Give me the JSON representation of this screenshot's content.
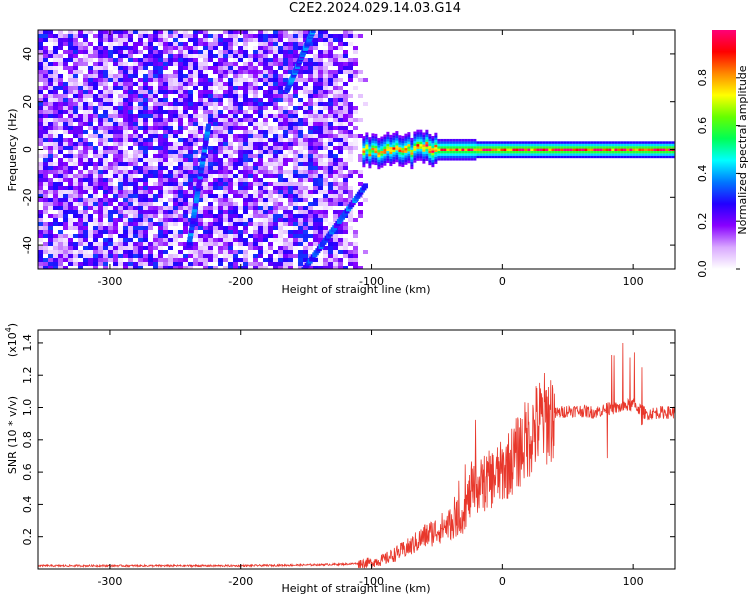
{
  "title": "C2E2.2024.029.14.03.G14",
  "chart_data": [
    {
      "type": "heatmap",
      "xlabel": "Height of straight line (km)",
      "ylabel": "Frequency (Hz)",
      "xlim": [
        -355,
        132
      ],
      "ylim": [
        -50,
        50
      ],
      "xticks": [
        -300,
        -200,
        -100,
        0,
        100
      ],
      "yticks": [
        -40,
        -20,
        0,
        20,
        40
      ],
      "colorbar": {
        "label": "Normalized spectral amplitude",
        "range": [
          0,
          1
        ],
        "ticks": [
          0.0,
          0.2,
          0.4,
          0.6,
          0.8
        ],
        "tick_labels": [
          "0.0",
          "0.2",
          "0.4",
          "0.6",
          "0.8"
        ],
        "colors": [
          "#ffffff",
          "#d9a8ff",
          "#8800ff",
          "#2200ff",
          "#0077ff",
          "#00ffff",
          "#00ff55",
          "#66ff00",
          "#ffff00",
          "#ff8800",
          "#ff0000",
          "#ff0077"
        ]
      },
      "features": {
        "noise_region_x": [
          -355,
          -105
        ],
        "carrier_frequency": 0,
        "carrier_start_x": -107,
        "diagonal_streaks": [
          {
            "x_start": -152,
            "y_start": -50,
            "x_end": -105,
            "y_end": -15
          },
          {
            "x_start": -165,
            "y_start": 25,
            "x_end": -145,
            "y_end": 50
          },
          {
            "x_start": -240,
            "y_start": -40,
            "x_end": -225,
            "y_end": 10
          }
        ]
      }
    },
    {
      "type": "line",
      "xlabel": "Height of straight line (km)",
      "ylabel": "SNR (10 * v/v)",
      "y_multiplier": "(x10",
      "y_multiplier_exp": "4",
      "y_multiplier_close": ")",
      "xlim": [
        -355,
        132
      ],
      "ylim": [
        0,
        1.48
      ],
      "xticks": [
        -300,
        -200,
        -100,
        0,
        100
      ],
      "yticks": [
        0.2,
        0.4,
        0.6,
        0.8,
        1.0,
        1.2,
        1.4
      ],
      "series": [
        {
          "color": "#e8372b",
          "x": [
            -355,
            -300,
            -250,
            -200,
            -150,
            -120,
            -100,
            -90,
            -80,
            -70,
            -60,
            -50,
            -40,
            -30,
            -25,
            -20,
            -10,
            0,
            10,
            20,
            30,
            40,
            50,
            60,
            70,
            80,
            90,
            100,
            110,
            120,
            132
          ],
          "y": [
            0.02,
            0.02,
            0.02,
            0.02,
            0.025,
            0.03,
            0.04,
            0.06,
            0.1,
            0.14,
            0.2,
            0.24,
            0.28,
            0.34,
            0.45,
            0.5,
            0.55,
            0.6,
            0.7,
            0.82,
            0.92,
            0.96,
            0.98,
            0.98,
            0.97,
            0.99,
            1.0,
            1.02,
            0.96,
            0.97,
            0.97
          ]
        }
      ],
      "grid": false
    }
  ]
}
